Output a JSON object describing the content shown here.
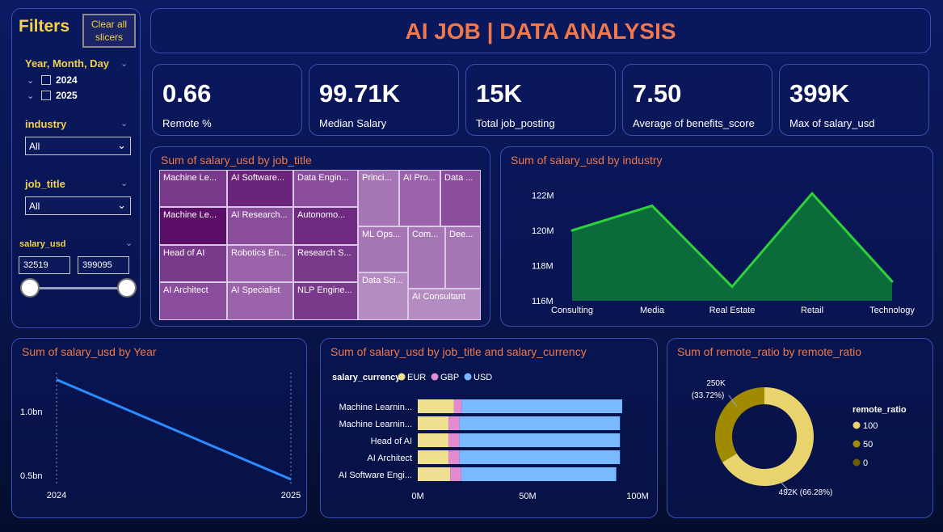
{
  "filters": {
    "title": "Filters",
    "clear_label_1": "Clear all",
    "clear_label_2": "slicers",
    "date_label": "Year, Month, Day",
    "years": [
      "2024",
      "2025"
    ],
    "industry_label": "industry",
    "industry_value": "All",
    "job_title_label": "job_title",
    "job_title_value": "All",
    "salary_label": "salary_usd",
    "salary_min": "32519",
    "salary_max": "399095"
  },
  "header": {
    "title": "AI JOB | DATA ANALYSIS"
  },
  "kpis": [
    {
      "value": "0.66",
      "label": "Remote %"
    },
    {
      "value": "99.71K",
      "label": "Median Salary"
    },
    {
      "value": "15K",
      "label": "Total job_posting"
    },
    {
      "value": "7.50",
      "label": "Average of benefits_score"
    },
    {
      "value": "399K",
      "label": "Max of salary_usd"
    }
  ],
  "treemap": {
    "title": "Sum of salary_usd by job_title",
    "tiles": [
      "Machine Le...",
      "AI Software...",
      "Data Engin...",
      "Machine Le...",
      "AI Research...",
      "Autonomo...",
      "Head of AI",
      "Robotics En...",
      "Research S...",
      "AI Architect",
      "AI Specialist",
      "NLP Engine...",
      "Princi...",
      "AI Pro...",
      "Data ...",
      "ML Ops...",
      "Com...",
      "Dee...",
      "Data Sci...",
      "AI Consultant"
    ],
    "colors": {
      "dark": "#5c0f66",
      "mid": "#7a3a8c",
      "mid2": "#8a4d9b",
      "light": "#a676b4",
      "lighter": "#b58cc2"
    }
  },
  "chart_data": [
    {
      "type": "area",
      "title": "Sum of salary_usd by industry",
      "categories": [
        "Consulting",
        "Media",
        "Real Estate",
        "Retail",
        "Technology"
      ],
      "values": [
        120.0,
        121.4,
        116.8,
        122.1,
        117.1
      ],
      "yticks": [
        "116M",
        "118M",
        "120M",
        "122M"
      ],
      "ylim": [
        116,
        122.8
      ],
      "fill_color": "#0b6b3a",
      "line_color": "#2ed13a"
    },
    {
      "type": "line",
      "title": "Sum of salary_usd by Year",
      "categories": [
        "2024",
        "2025"
      ],
      "values": [
        1.25,
        0.47
      ],
      "yticks": [
        "0.5bn",
        "1.0bn"
      ],
      "ylim": [
        0.4,
        1.38
      ],
      "line_color": "#2a8cff"
    },
    {
      "type": "bar",
      "title": "Sum of salary_usd by job_title and salary_currency",
      "legend_title": "salary_currency",
      "series_names": [
        "EUR",
        "GBP",
        "USD"
      ],
      "series_colors": [
        "#efe08f",
        "#e28bd0",
        "#78b9ff"
      ],
      "categories": [
        "Machine Learnin...",
        "Machine Learnin...",
        "Head of AI",
        "AI Architect",
        "AI Software Engi..."
      ],
      "series": [
        {
          "name": "EUR",
          "values": [
            16.5,
            14.0,
            14.0,
            14.0,
            14.8
          ]
        },
        {
          "name": "GBP",
          "values": [
            3.5,
            5.0,
            5.0,
            5.0,
            5.0
          ]
        },
        {
          "name": "USD",
          "values": [
            73.0,
            73.0,
            73.0,
            73.0,
            70.5
          ]
        }
      ],
      "xticks": [
        "0M",
        "50M",
        "100M"
      ],
      "xlim": [
        0,
        100
      ]
    },
    {
      "type": "pie",
      "title": "Sum of remote_ratio by remote_ratio",
      "legend_title": "remote_ratio",
      "labels": [
        "100",
        "50",
        "0"
      ],
      "values": [
        66.28,
        33.72,
        0
      ],
      "data_labels": [
        "492K (66.28%)",
        "250K",
        "(33.72%)"
      ],
      "colors": [
        "#e9d36d",
        "#a08a00",
        "#6b5e00"
      ]
    }
  ]
}
